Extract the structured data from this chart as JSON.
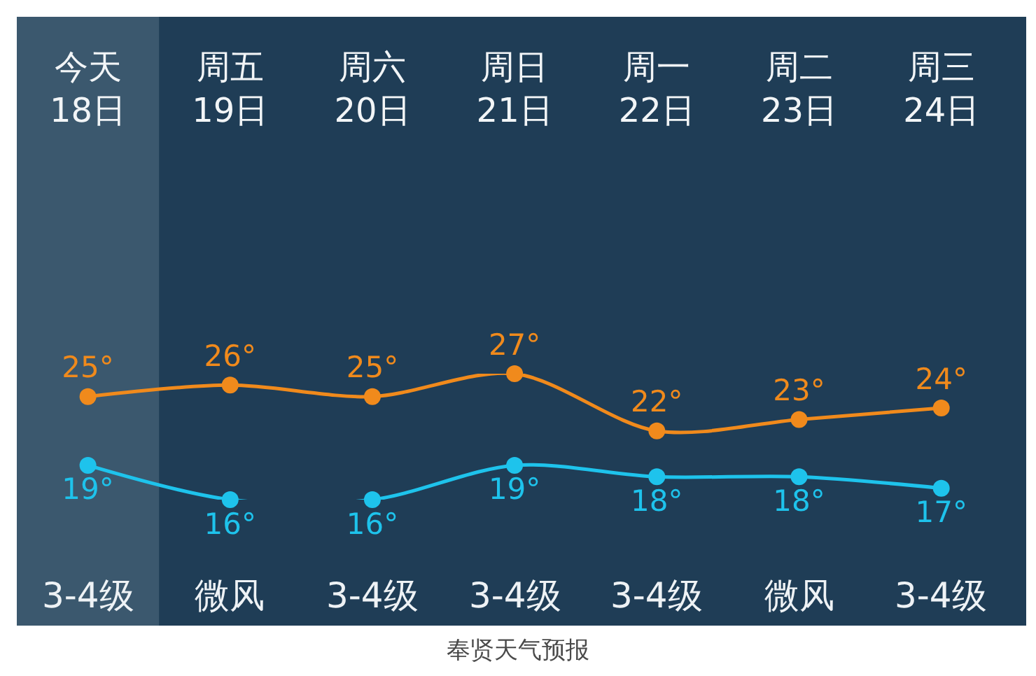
{
  "chart_data": {
    "type": "line",
    "categories": [
      "今天\n18日",
      "周五\n19日",
      "周六\n20日",
      "周日\n21日",
      "周一\n22日",
      "周二\n23日",
      "周三\n24日"
    ],
    "series": [
      {
        "color": "#f08a1c",
        "values": [
          25,
          26,
          25,
          27,
          22,
          23,
          24
        ],
        "value_labels": [
          "25°",
          "26°",
          "25°",
          "27°",
          "22°",
          "23°",
          "24°"
        ]
      },
      {
        "color": "#1ec3ec",
        "values": [
          19,
          16,
          16,
          19,
          18,
          18,
          17
        ],
        "value_labels": [
          "19°",
          "16°",
          "16°",
          "19°",
          "18°",
          "18°",
          "17°"
        ]
      }
    ],
    "marker": "circle",
    "line_style": "solid",
    "tick_labels": "x",
    "bands": [
      {
        "axis": "x",
        "from": "今天\n18日",
        "to": "今天\n18日",
        "color": "#3b586e"
      }
    ],
    "annotations": [
      "3-4级",
      "微风",
      "3-4级",
      "3-4级",
      "3-4级",
      "微风",
      "3-4级",
      "奉贤天气预报"
    ]
  }
}
